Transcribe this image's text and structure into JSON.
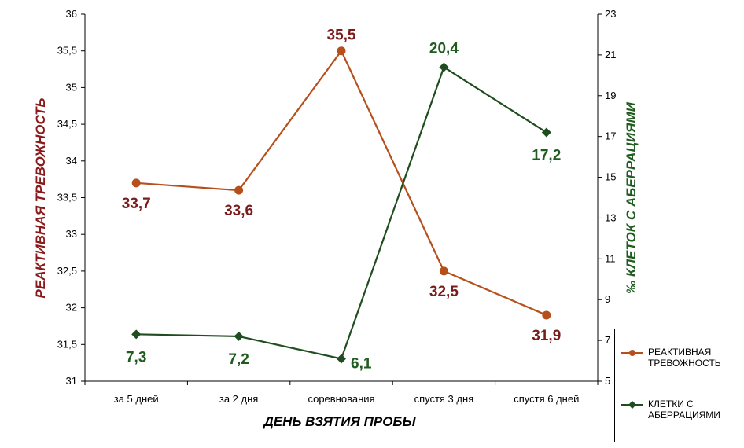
{
  "chart_data": {
    "type": "line",
    "categories": [
      "за 5 дней",
      "за 2 дня",
      "соревнования",
      "спустя 3 дня",
      "спустя 6 дней"
    ],
    "xlabel": "ДЕНЬ ВЗЯТИЯ ПРОБЫ",
    "ylabel": "РЕАКТИВНАЯ ТРЕВОЖНОСТЬ",
    "ylabel_right": "‰ КЛЕТОК С АБЕРРАЦИЯМИ",
    "ylim": [
      31,
      36
    ],
    "yticks": [
      "31",
      "31,5",
      "32",
      "32,5",
      "33",
      "33,5",
      "34",
      "34,5",
      "35",
      "35,5",
      "36"
    ],
    "ylim_right": [
      5,
      23
    ],
    "yticks_right": [
      "5",
      "7",
      "9",
      "11",
      "13",
      "15",
      "17",
      "19",
      "21",
      "23"
    ],
    "legend_position": "bottom-right",
    "series": [
      {
        "name": "РЕАКТИВНАЯ ТРЕВОЖНОСТЬ",
        "axis": "left",
        "color": "#b5501c",
        "label_color": "#7b1c1c",
        "marker": "circle",
        "values": [
          33.7,
          33.6,
          35.5,
          32.5,
          31.9
        ],
        "labels": [
          "33,7",
          "33,6",
          "35,5",
          "32,5",
          "31,9"
        ]
      },
      {
        "name": "КЛЕТКИ С АБЕРРАЦИЯМИ",
        "axis": "right",
        "color": "#1f4d1f",
        "label_color": "#1f5c1f",
        "marker": "diamond",
        "values": [
          7.3,
          7.2,
          6.1,
          20.4,
          17.2
        ],
        "labels": [
          "7,3",
          "7,2",
          "6,1",
          "20,4",
          "17,2"
        ]
      }
    ]
  }
}
